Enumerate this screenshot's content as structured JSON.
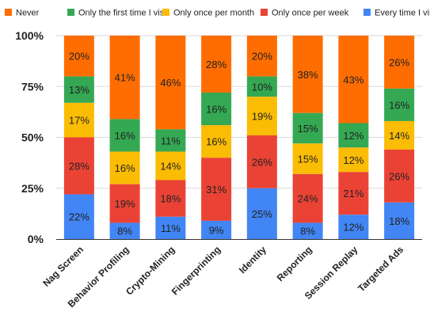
{
  "chart_data": {
    "type": "bar",
    "stacked": "percent",
    "categories": [
      "Nag Screen",
      "Behavior Profiling",
      "Crypto-Mining",
      "Fingerprinting",
      "Identity",
      "Reporting",
      "Session Replay",
      "Targeted Ads"
    ],
    "series": [
      {
        "name": "Every time I visit",
        "color": "#4285F4",
        "values": [
          22,
          8,
          11,
          9,
          25,
          8,
          12,
          18
        ]
      },
      {
        "name": "Only once per week",
        "color": "#EA4335",
        "values": [
          28,
          19,
          18,
          31,
          26,
          24,
          21,
          26
        ]
      },
      {
        "name": "Only once per month",
        "color": "#FBBC04",
        "values": [
          17,
          16,
          14,
          16,
          19,
          15,
          12,
          14
        ]
      },
      {
        "name": "Only the first time I visit",
        "color": "#34A853",
        "values": [
          13,
          16,
          11,
          16,
          10,
          15,
          12,
          16
        ]
      },
      {
        "name": "Never",
        "color": "#FF6D01",
        "values": [
          20,
          41,
          46,
          28,
          20,
          38,
          43,
          26
        ]
      }
    ],
    "legend_order": [
      "Never",
      "Only the first time I visit",
      "Only once per month",
      "Only once per week",
      "Every time I visit"
    ],
    "legend_position": "top",
    "y_ticks": [
      "0%",
      "25%",
      "50%",
      "75%",
      "100%"
    ],
    "ylim": [
      0,
      100
    ],
    "grid": true,
    "title": "",
    "xlabel": "",
    "ylabel": ""
  }
}
